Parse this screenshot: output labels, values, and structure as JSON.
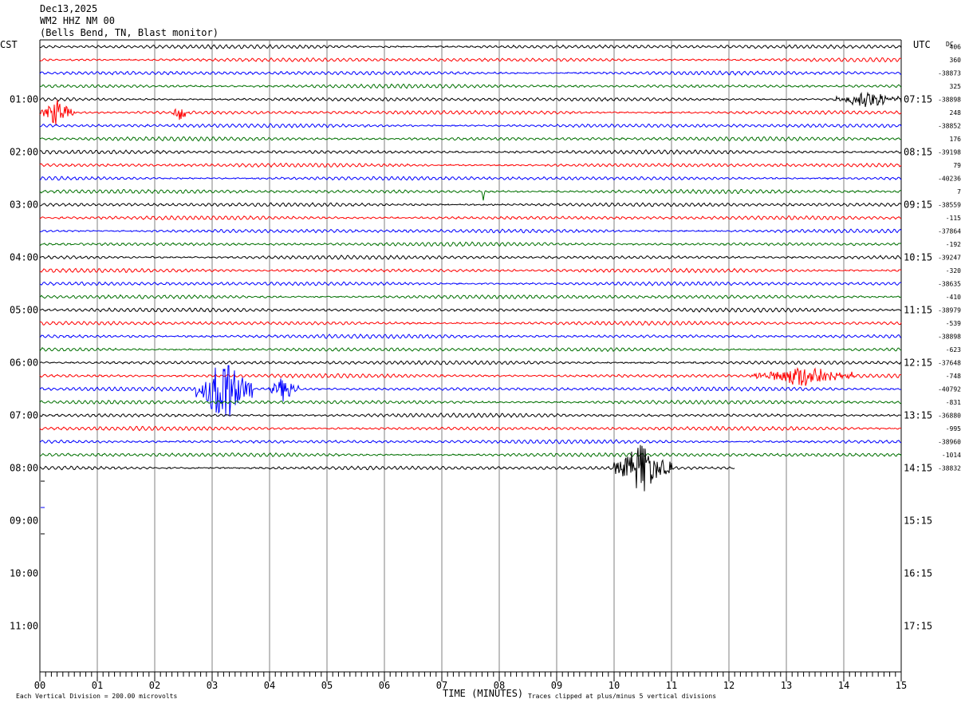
{
  "header": {
    "date": "Dec13,2025",
    "station": "WM2 HHZ NM 00",
    "location": "(Bells Bend, TN, Blast monitor)"
  },
  "labels": {
    "left_timezone": "CST",
    "right_timezone": "UTC",
    "dc_header": "DC",
    "x_title": "TIME (MINUTES)",
    "scale_note": "Each Vertical Division =  200.00 microvolts",
    "clip_note": "Traces clipped at plus/minus 5 vertical divisions"
  },
  "chart_data": {
    "type": "line",
    "title": "Dec13,2025 WM2 HHZ NM 00 (Bells Bend, TN, Blast monitor)",
    "xlabel": "TIME (MINUTES)",
    "xlim": [
      0,
      15
    ],
    "x_ticks": [
      "00",
      "01",
      "02",
      "03",
      "04",
      "05",
      "06",
      "07",
      "08",
      "09",
      "10",
      "11",
      "12",
      "13",
      "14",
      "15"
    ],
    "line_minutes": 15,
    "lines_total": 48,
    "lines_recorded": 33,
    "last_line_end_minute": 12.1,
    "trace_colors": [
      "#000000",
      "#ff0000",
      "#0000ff",
      "#007000"
    ],
    "cst_hour_labels": [
      "01:00",
      "02:00",
      "03:00",
      "04:00",
      "05:00",
      "06:00",
      "07:00",
      "08:00",
      "09:00",
      "10:00",
      "11:00"
    ],
    "utc_hour_labels": [
      "07:15",
      "08:15",
      "09:15",
      "10:15",
      "11:15",
      "12:15",
      "13:15",
      "14:15",
      "15:15",
      "16:15",
      "17:15"
    ],
    "dc_offsets": [
      "406",
      "360",
      "-38873",
      "325",
      "-38898",
      "248",
      "-38852",
      "176",
      "-39198",
      "79",
      "-40236",
      "7",
      "-38559",
      "-115",
      "-37864",
      "-192",
      "-39247",
      "-320",
      "-38635",
      "-410",
      "-38979",
      "-539",
      "-38898",
      "-623",
      "-37648",
      "-748",
      "-40792",
      "-831",
      "-36880",
      "-995",
      "-38960",
      "-1014",
      "-38832"
    ],
    "events": [
      {
        "line": 4,
        "minute_start": 13.8,
        "minute_end": 15.0,
        "amplitude": 0.6
      },
      {
        "line": 5,
        "minute_start": 0.0,
        "minute_end": 0.6,
        "amplitude": 1.2
      },
      {
        "line": 5,
        "minute_start": 2.3,
        "minute_end": 2.6,
        "amplitude": 0.7
      },
      {
        "line": 11,
        "minute_start": 7.7,
        "minute_end": 7.75,
        "amplitude": 1.0
      },
      {
        "line": 25,
        "minute_start": 12.4,
        "minute_end": 14.2,
        "amplitude": 0.9
      },
      {
        "line": 26,
        "minute_start": 2.7,
        "minute_end": 3.7,
        "amplitude": 3.0
      },
      {
        "line": 26,
        "minute_start": 4.0,
        "minute_end": 4.5,
        "amplitude": 1.1
      },
      {
        "line": 32,
        "minute_start": 10.0,
        "minute_end": 11.0,
        "amplitude": 2.2
      }
    ],
    "marks": [
      {
        "line": 33,
        "color": "#000000"
      },
      {
        "line": 35,
        "color": "#0000ff"
      },
      {
        "line": 37,
        "color": "#000000"
      }
    ],
    "grid": true
  }
}
